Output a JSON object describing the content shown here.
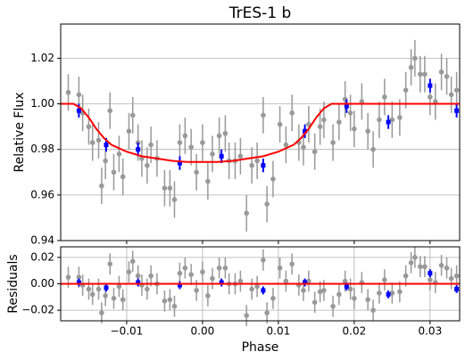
{
  "chart_data": [
    {
      "type": "errorbar",
      "title": "TrES-1 b",
      "ylabel": "Relative Flux",
      "xlim": [
        -0.0187,
        0.0339
      ],
      "ylim": [
        0.94,
        1.035
      ],
      "xticks": [
        -0.01,
        0,
        0.01,
        0.02,
        0.03
      ],
      "yticks": [
        0.94,
        0.96,
        0.98,
        {
          "value": 1,
          "label": "1.00"
        },
        1.02
      ],
      "grid": "y",
      "series": [
        {
          "name": "data",
          "style": "points",
          "color": "#999999",
          "error": 0.008,
          "x": [
            -0.0177,
            -0.0163,
            -0.0158,
            -0.015,
            -0.0145,
            -0.0137,
            -0.0133,
            -0.0128,
            -0.0122,
            -0.0117,
            -0.011,
            -0.0105,
            -0.0097,
            -0.0092,
            -0.0085,
            -0.008,
            -0.0073,
            -0.0068,
            -0.006,
            -0.005,
            -0.0043,
            -0.0037,
            -0.003,
            -0.0023,
            -0.0015,
            -0.0008,
            0,
            0.0007,
            0.0013,
            0.0022,
            0.003,
            0.0035,
            0.0043,
            0.005,
            0.0058,
            0.0065,
            0.0072,
            0.008,
            0.0085,
            0.0093,
            0.0102,
            0.011,
            0.0118,
            0.0127,
            0.0133,
            0.014,
            0.0148,
            0.0155,
            0.016,
            0.0172,
            0.018,
            0.0188,
            0.0195,
            0.02,
            0.021,
            0.0218,
            0.0225,
            0.0233,
            0.024,
            0.025,
            0.026,
            0.0268,
            0.0275,
            0.028,
            0.0287,
            0.0293,
            0.03,
            0.0307,
            0.0315,
            0.0322,
            0.0328,
            0.0335
          ],
          "values": [
            1.005,
            1.004,
            0.996,
            0.99,
            0.983,
            0.984,
            0.964,
            0.975,
            0.997,
            0.97,
            0.978,
            0.968,
            0.988,
            0.995,
            0.983,
            0.976,
            0.973,
            0.982,
            0.976,
            0.963,
            0.963,
            0.958,
            0.983,
            0.986,
            0.981,
            0.97,
            0.983,
            0.966,
            0.978,
            0.986,
            0.987,
            0.975,
            0.975,
            0.977,
            0.952,
            0.973,
            0.975,
            0.995,
            0.956,
            0.967,
            0.991,
            0.982,
            0.996,
            0.983,
            0.981,
            0.991,
            0.979,
            0.99,
            0.993,
            0.983,
            0.992,
            1.002,
            0.996,
            0.989,
            1.001,
            0.988,
            0.98,
            0.993,
            1.003,
            0.993,
            0.994,
            1.006,
            1.016,
            1.02,
            1.013,
            1.013,
            1.003,
            1.001,
            1.014,
            1.012,
            1.004,
            1.006
          ]
        },
        {
          "name": "binned",
          "style": "points",
          "color": "#0000ff",
          "error": 0.003,
          "x": [
            -0.0163,
            -0.0127,
            -0.0085,
            -0.003,
            0.0025,
            0.008,
            0.0135,
            0.019,
            0.0245,
            0.03,
            0.0335
          ],
          "values": [
            0.997,
            0.982,
            0.98,
            0.974,
            0.977,
            0.973,
            0.988,
            0.999,
            0.992,
            1.008,
            0.997
          ]
        },
        {
          "name": "model",
          "style": "line",
          "color": "#ff0000",
          "x": [
            -0.0187,
            -0.017,
            -0.016,
            -0.015,
            -0.014,
            -0.013,
            -0.012,
            -0.01,
            -0.008,
            -0.006,
            -0.004,
            -0.002,
            0,
            0.002,
            0.004,
            0.006,
            0.008,
            0.01,
            0.012,
            0.013,
            0.014,
            0.015,
            0.016,
            0.017,
            0.0339
          ],
          "values": [
            1,
            1,
            0.998,
            0.994,
            0.989,
            0.985,
            0.982,
            0.979,
            0.977,
            0.976,
            0.975,
            0.9745,
            0.9745,
            0.9745,
            0.975,
            0.976,
            0.977,
            0.979,
            0.982,
            0.985,
            0.989,
            0.994,
            0.998,
            1,
            1
          ]
        }
      ]
    },
    {
      "type": "errorbar",
      "ylabel": "Residuals",
      "xlabel": "Phase",
      "xlim": [
        -0.0187,
        0.0339
      ],
      "ylim": [
        -0.028,
        0.028
      ],
      "xticks": [
        {
          "value": -0.01,
          "label": "−0.01"
        },
        {
          "value": 0,
          "label": "0.00"
        },
        0.01,
        0.02,
        0.03
      ],
      "yticks": [
        {
          "value": -0.02,
          "label": "−0.02"
        },
        {
          "value": 0,
          "label": "0.00"
        },
        0.02
      ],
      "grid": "xy",
      "series": [
        {
          "name": "data",
          "style": "points",
          "color": "#999999",
          "error": 0.008,
          "x": [
            -0.0177,
            -0.0163,
            -0.0158,
            -0.015,
            -0.0145,
            -0.0137,
            -0.0133,
            -0.0128,
            -0.0122,
            -0.0117,
            -0.011,
            -0.0105,
            -0.0097,
            -0.0092,
            -0.0085,
            -0.008,
            -0.0073,
            -0.0068,
            -0.006,
            -0.005,
            -0.0043,
            -0.0037,
            -0.003,
            -0.0023,
            -0.0015,
            -0.0008,
            0,
            0.0007,
            0.0013,
            0.0022,
            0.003,
            0.0035,
            0.0043,
            0.005,
            0.0058,
            0.0065,
            0.0072,
            0.008,
            0.0085,
            0.0093,
            0.0102,
            0.011,
            0.0118,
            0.0127,
            0.0133,
            0.014,
            0.0148,
            0.0155,
            0.016,
            0.0172,
            0.018,
            0.0188,
            0.0195,
            0.02,
            0.021,
            0.0218,
            0.0225,
            0.0233,
            0.024,
            0.025,
            0.026,
            0.0268,
            0.0275,
            0.028,
            0.0287,
            0.0293,
            0.03,
            0.0307,
            0.0315,
            0.0322,
            0.0328,
            0.0335
          ],
          "values": [
            0.005,
            0.005,
            -0.001,
            -0.004,
            -0.008,
            -0.004,
            -0.022,
            -0.009,
            0.015,
            -0.011,
            -0.002,
            -0.012,
            0.009,
            0.017,
            0.006,
            -0.001,
            -0.004,
            0.006,
            0,
            -0.013,
            -0.012,
            -0.017,
            0.008,
            0.012,
            0.007,
            -0.005,
            0.009,
            -0.009,
            0.004,
            0.012,
            0.012,
            0,
            0,
            0.002,
            -0.024,
            -0.004,
            -0.002,
            0.018,
            -0.022,
            -0.011,
            0.012,
            0.002,
            0.015,
            -0.001,
            -0.005,
            0.002,
            -0.014,
            -0.006,
            -0.005,
            -0.017,
            -0.008,
            0.002,
            -0.004,
            -0.011,
            0.001,
            -0.012,
            -0.02,
            -0.007,
            0.003,
            -0.007,
            -0.006,
            0.006,
            0.016,
            0.02,
            0.013,
            0.013,
            0.003,
            0.001,
            0.014,
            0.012,
            0.004,
            0.006
          ]
        },
        {
          "name": "binned",
          "style": "points",
          "color": "#0000ff",
          "error": 0.003,
          "x": [
            -0.0163,
            -0.0127,
            -0.0085,
            -0.003,
            0.0025,
            0.008,
            0.0135,
            0.019,
            0.0245,
            0.03,
            0.0335
          ],
          "values": [
            0.001,
            -0.003,
            0.001,
            -0.001,
            0.001,
            -0.005,
            0.001,
            -0.002,
            -0.008,
            0.008,
            -0.004
          ]
        },
        {
          "name": "model",
          "style": "line",
          "color": "#ff0000",
          "x": [
            -0.0187,
            0.0339
          ],
          "values": [
            0,
            0
          ]
        }
      ]
    }
  ]
}
